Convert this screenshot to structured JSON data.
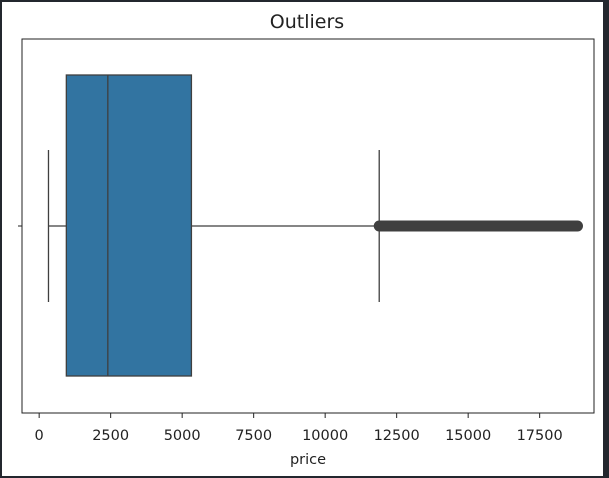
{
  "chart_data": {
    "type": "box",
    "orientation": "horizontal",
    "title": "Outliers",
    "xlabel": "price",
    "ylabel": "",
    "xlim": [
      -600,
      19400
    ],
    "xticks": [
      0,
      2500,
      5000,
      7500,
      10000,
      12500,
      15000,
      17500
    ],
    "xtick_labels": [
      "0",
      "2500",
      "5000",
      "7500",
      "10000",
      "12500",
      "15000",
      "17500"
    ],
    "grid": false,
    "box": {
      "whisker_low": 326,
      "q1": 950,
      "median": 2401,
      "q3": 5324,
      "whisker_high": 11890,
      "outliers_range": [
        11890,
        18823
      ]
    },
    "colors": {
      "box_fill": "#3274a1",
      "lines": "#3f3f3f",
      "outliers": "#3f3f3f",
      "axes": "#222222"
    }
  }
}
